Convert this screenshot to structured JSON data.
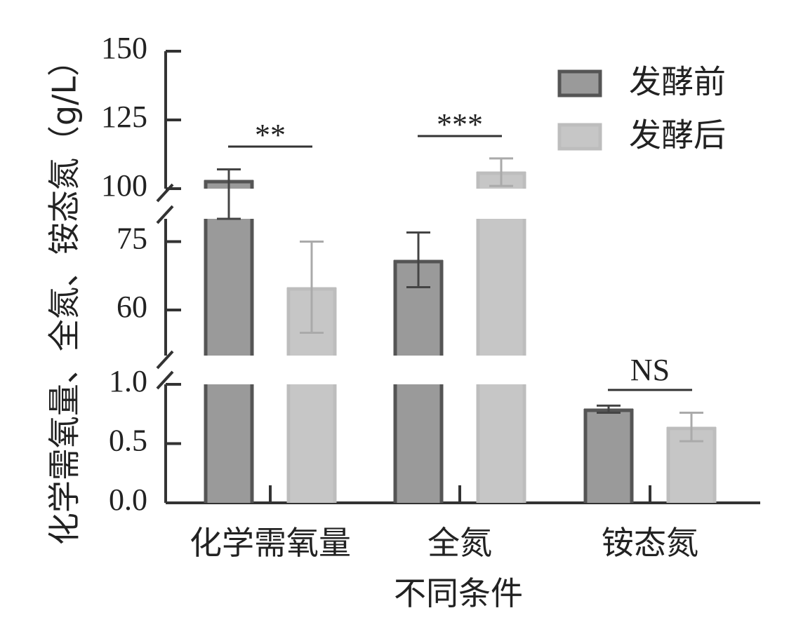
{
  "chart_data": {
    "type": "bar",
    "xlabel": "不同条件",
    "ylabel": "化学需氧量、全氮、铵态氮（g/L）",
    "categories": [
      "化学需氧量",
      "全氮",
      "铵态氮"
    ],
    "series": [
      {
        "name": "发酵前",
        "values": [
          103,
          71,
          0.79
        ],
        "errors": [
          4,
          6,
          0.03
        ],
        "color": "#9a9a9a",
        "border": "#555555"
      },
      {
        "name": "发酵后",
        "values": [
          65,
          106,
          0.64
        ],
        "errors": [
          10,
          5,
          0.12
        ],
        "color": "#c6c6c6",
        "border": "#bdbdbd"
      }
    ],
    "y_axis_segments": [
      {
        "range": [
          0,
          1.0
        ],
        "ticks": [
          0.0,
          0.5,
          1.0
        ],
        "tick_labels": [
          "0.0",
          "0.5",
          "1.0"
        ]
      },
      {
        "range": [
          50,
          80
        ],
        "ticks": [
          60,
          75
        ],
        "tick_labels": [
          "60",
          "75"
        ]
      },
      {
        "range": [
          100,
          150
        ],
        "ticks": [
          100,
          125,
          150
        ],
        "tick_labels": [
          "100",
          "125",
          "150"
        ]
      }
    ],
    "significance": [
      {
        "category": "化学需氧量",
        "label": "**"
      },
      {
        "category": "全氮",
        "label": "***"
      },
      {
        "category": "铵态氮",
        "label": "NS"
      }
    ],
    "legend_position": "top-right",
    "grid": false
  }
}
